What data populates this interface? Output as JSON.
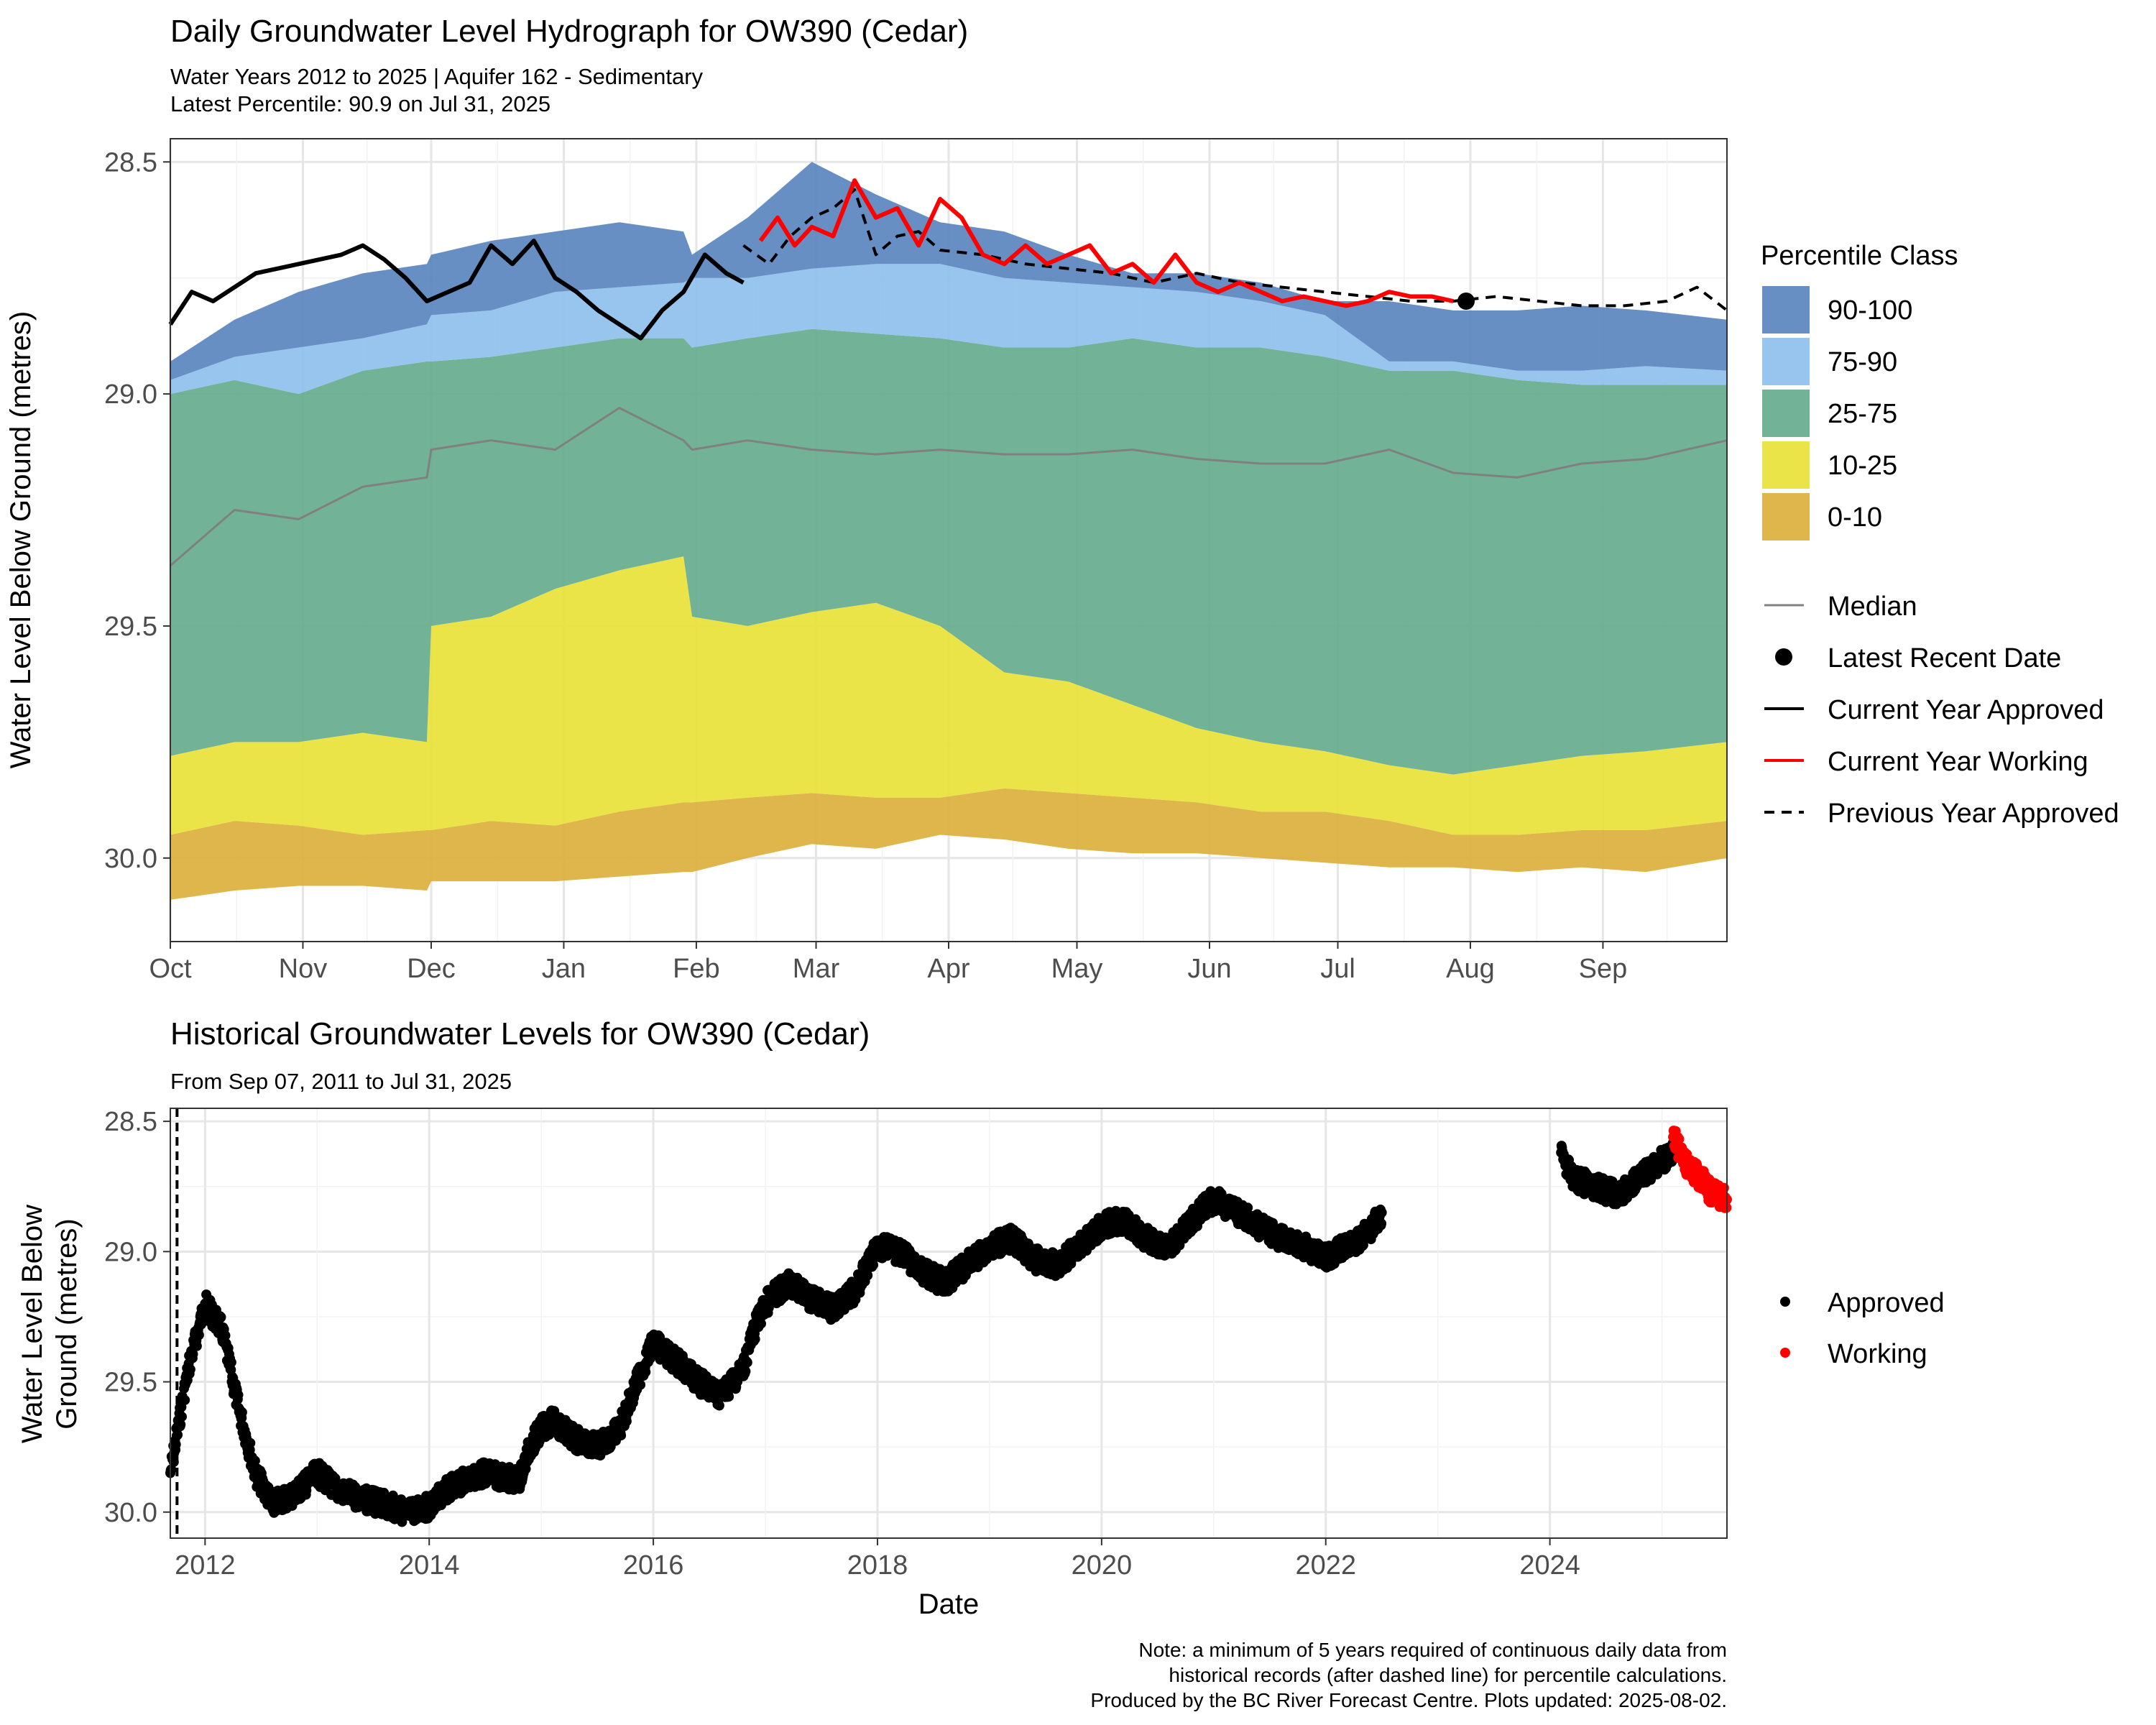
{
  "colors": {
    "p90_100": "#5b86bf",
    "p75_90": "#8fc0ec",
    "p25_75": "#66ad8e",
    "p10_25": "#e8e23a",
    "p0_10": "#dcb03c",
    "median": "#808080",
    "approved": "#000000",
    "working": "#ff0000"
  },
  "chart_data": [
    {
      "type": "area",
      "title": "Daily Groundwater Level Hydrograph for OW390 (Cedar)",
      "subtitle_line1": "Water Years 2012 to 2025 | Aquifer 162 - Sedimentary",
      "subtitle_line2": "Latest Percentile: 90.9 on Jul 31, 2025",
      "xlabel": "",
      "ylabel": "Water Level Below Ground (metres)",
      "y_reversed": true,
      "ylim": [
        30.18,
        28.45
      ],
      "yticks": [
        "28.5",
        "29.0",
        "29.5",
        "30.0"
      ],
      "xlim_days": [
        0,
        364
      ],
      "month_labels": [
        "Oct",
        "Nov",
        "Dec",
        "Jan",
        "Feb",
        "Mar",
        "Apr",
        "May",
        "Jun",
        "Jul",
        "Aug",
        "Sep"
      ],
      "month_start_days": [
        0,
        31,
        61,
        92,
        123,
        151,
        182,
        212,
        243,
        273,
        304,
        335
      ],
      "grid": true,
      "legend_placement": "right",
      "legend_title": "Percentile Class",
      "legend_classes": [
        "90-100",
        "75-90",
        "25-75",
        "10-25",
        "0-10"
      ],
      "legend_lines": [
        "Median",
        "Latest Recent Date",
        "Current Year Approved",
        "Current Year Working",
        "Previous Year Approved"
      ],
      "band_x_days": [
        0,
        15,
        30,
        45,
        60,
        61,
        75,
        90,
        105,
        120,
        122,
        135,
        150,
        165,
        180,
        195,
        210,
        225,
        240,
        255,
        270,
        285,
        300,
        315,
        330,
        345,
        364
      ],
      "band_min": [
        30.09,
        30.07,
        30.06,
        30.06,
        30.07,
        30.05,
        30.05,
        30.05,
        30.04,
        30.03,
        30.03,
        30.0,
        29.97,
        29.98,
        29.95,
        29.96,
        29.98,
        29.99,
        29.99,
        30.0,
        30.01,
        30.02,
        30.02,
        30.03,
        30.02,
        30.03,
        30.0
      ],
      "band_p10": [
        29.95,
        29.92,
        29.93,
        29.95,
        29.94,
        29.94,
        29.92,
        29.93,
        29.9,
        29.88,
        29.88,
        29.87,
        29.86,
        29.87,
        29.87,
        29.85,
        29.86,
        29.87,
        29.88,
        29.9,
        29.9,
        29.92,
        29.95,
        29.95,
        29.94,
        29.94,
        29.92
      ],
      "band_p25": [
        29.78,
        29.75,
        29.75,
        29.73,
        29.75,
        29.5,
        29.48,
        29.42,
        29.38,
        29.35,
        29.48,
        29.5,
        29.47,
        29.45,
        29.5,
        29.6,
        29.62,
        29.67,
        29.72,
        29.75,
        29.77,
        29.8,
        29.82,
        29.8,
        29.78,
        29.77,
        29.75
      ],
      "band_p75": [
        29.0,
        28.97,
        29.0,
        28.95,
        28.93,
        28.93,
        28.92,
        28.9,
        28.88,
        28.88,
        28.9,
        28.88,
        28.86,
        28.87,
        28.88,
        28.9,
        28.9,
        28.88,
        28.9,
        28.9,
        28.92,
        28.95,
        28.95,
        28.97,
        28.98,
        28.98,
        28.98
      ],
      "band_p90": [
        28.97,
        28.92,
        28.9,
        28.88,
        28.85,
        28.83,
        28.82,
        28.78,
        28.77,
        28.76,
        28.75,
        28.75,
        28.73,
        28.72,
        28.72,
        28.75,
        28.76,
        28.77,
        28.78,
        28.8,
        28.83,
        28.93,
        28.93,
        28.95,
        28.95,
        28.94,
        28.95
      ],
      "band_max": [
        28.93,
        28.84,
        28.78,
        28.74,
        28.72,
        28.7,
        28.67,
        28.65,
        28.63,
        28.65,
        28.7,
        28.62,
        28.5,
        28.57,
        28.63,
        28.65,
        28.7,
        28.74,
        28.74,
        28.76,
        28.8,
        28.8,
        28.82,
        28.82,
        28.81,
        28.82,
        28.84
      ],
      "median_values": [
        29.37,
        29.25,
        29.27,
        29.2,
        29.18,
        29.12,
        29.1,
        29.12,
        29.03,
        29.1,
        29.12,
        29.1,
        29.12,
        29.13,
        29.12,
        29.13,
        29.13,
        29.12,
        29.14,
        29.15,
        29.15,
        29.12,
        29.17,
        29.18,
        29.15,
        29.14,
        29.1
      ],
      "current_approved_x_days": [
        0,
        5,
        10,
        20,
        30,
        40,
        45,
        50,
        55,
        60,
        65,
        70,
        75,
        80,
        85,
        90,
        95,
        100,
        105,
        110,
        115,
        120,
        125,
        130,
        134
      ],
      "current_approved_values": [
        28.85,
        28.78,
        28.8,
        28.74,
        28.72,
        28.7,
        28.68,
        28.71,
        28.75,
        28.8,
        28.78,
        28.76,
        28.68,
        28.72,
        28.67,
        28.75,
        28.78,
        28.82,
        28.85,
        28.88,
        28.82,
        28.78,
        28.7,
        28.74,
        28.76
      ],
      "current_working_x_days": [
        138,
        142,
        146,
        150,
        155,
        160,
        165,
        170,
        175,
        180,
        185,
        190,
        195,
        200,
        205,
        210,
        215,
        220,
        225,
        230,
        235,
        240,
        245,
        250,
        255,
        260,
        265,
        270,
        275,
        280,
        285,
        290,
        295,
        300
      ],
      "current_working_values": [
        28.67,
        28.62,
        28.68,
        28.64,
        28.66,
        28.54,
        28.62,
        28.6,
        28.68,
        28.58,
        28.62,
        28.7,
        28.72,
        28.68,
        28.72,
        28.7,
        28.68,
        28.74,
        28.72,
        28.76,
        28.7,
        28.76,
        28.78,
        28.76,
        28.78,
        28.8,
        28.79,
        28.8,
        28.81,
        28.8,
        28.78,
        28.79,
        28.79,
        28.8
      ],
      "previous_approved_x_days": [
        134,
        140,
        145,
        150,
        155,
        160,
        165,
        170,
        175,
        180,
        190,
        200,
        210,
        220,
        230,
        240,
        250,
        260,
        270,
        280,
        290,
        300,
        310,
        320,
        330,
        340,
        350,
        357,
        364
      ],
      "previous_approved_values": [
        28.68,
        28.72,
        28.66,
        28.62,
        28.6,
        28.56,
        28.7,
        28.66,
        28.65,
        28.69,
        28.7,
        28.72,
        28.73,
        28.74,
        28.76,
        28.74,
        28.76,
        28.77,
        28.78,
        28.79,
        28.8,
        28.8,
        28.79,
        28.8,
        28.81,
        28.81,
        28.8,
        28.77,
        28.82
      ],
      "latest_point": {
        "x_day": 303,
        "y": 28.8,
        "date": "Jul 31, 2025"
      }
    },
    {
      "type": "scatter",
      "title": "Historical Groundwater Levels for OW390 (Cedar)",
      "subtitle": "From Sep 07, 2011 to Jul 31, 2025",
      "xlabel": "Date",
      "ylabel_line1": "Water Level Below",
      "ylabel_line2": "Ground (metres)",
      "y_reversed": true,
      "ylim": [
        30.1,
        28.45
      ],
      "yticks": [
        "28.5",
        "29.0",
        "29.5",
        "30.0"
      ],
      "xlim_years": [
        2011.69,
        2025.58
      ],
      "xtick_years": [
        2012,
        2014,
        2016,
        2018,
        2020,
        2022,
        2024
      ],
      "dashed_line_year": 2011.75,
      "grid": true,
      "legend_placement": "right",
      "legend_labels": [
        "Approved",
        "Working"
      ],
      "approved_years": [
        2011.69,
        2011.85,
        2012.0,
        2012.15,
        2012.3,
        2012.45,
        2012.6,
        2012.8,
        2013.0,
        2013.2,
        2013.4,
        2013.6,
        2013.8,
        2014.0,
        2014.2,
        2014.5,
        2014.8,
        2014.9,
        2015.0,
        2015.1,
        2015.3,
        2015.5,
        2015.7,
        2015.9,
        2016.0,
        2016.2,
        2016.4,
        2016.6,
        2016.8,
        2016.9,
        2017.0,
        2017.2,
        2017.4,
        2017.6,
        2017.8,
        2018.0,
        2018.2,
        2018.4,
        2018.6,
        2018.8,
        2019.0,
        2019.2,
        2019.4,
        2019.6,
        2019.8,
        2020.0,
        2020.2,
        2020.4,
        2020.6,
        2020.8,
        2021.0,
        2021.2,
        2021.4,
        2021.6,
        2021.8,
        2022.0,
        2022.2,
        2022.4,
        2022.5,
        2024.1,
        2024.2,
        2024.4,
        2024.6,
        2024.8,
        2025.0,
        2025.1
      ],
      "approved_values": [
        29.85,
        29.45,
        29.2,
        29.3,
        29.6,
        29.85,
        29.97,
        29.93,
        29.85,
        29.92,
        29.95,
        29.97,
        30.0,
        29.98,
        29.9,
        29.85,
        29.88,
        29.75,
        29.68,
        29.65,
        29.72,
        29.75,
        29.68,
        29.45,
        29.35,
        29.42,
        29.5,
        29.55,
        29.45,
        29.3,
        29.2,
        29.12,
        29.18,
        29.22,
        29.15,
        28.98,
        29.0,
        29.08,
        29.12,
        29.05,
        28.98,
        28.95,
        29.03,
        29.05,
        28.98,
        28.9,
        28.88,
        28.95,
        28.99,
        28.88,
        28.8,
        28.85,
        28.9,
        28.95,
        28.98,
        29.02,
        28.98,
        28.92,
        28.85,
        28.62,
        28.72,
        28.75,
        28.78,
        28.72,
        28.65,
        28.62
      ],
      "working_years": [
        2025.1,
        2025.15,
        2025.2,
        2025.25,
        2025.3,
        2025.35,
        2025.4,
        2025.45,
        2025.5,
        2025.55,
        2025.58
      ],
      "working_values": [
        28.56,
        28.6,
        28.65,
        28.68,
        28.7,
        28.72,
        28.75,
        28.78,
        28.78,
        28.8,
        28.8
      ]
    }
  ],
  "note": {
    "line1": "Note: a minimum of 5 years required of continuous daily data from",
    "line2": "historical records (after dashed line) for percentile calculations.",
    "line3": "Produced by the BC River Forecast Centre. Plots updated: 2025-08-02."
  }
}
